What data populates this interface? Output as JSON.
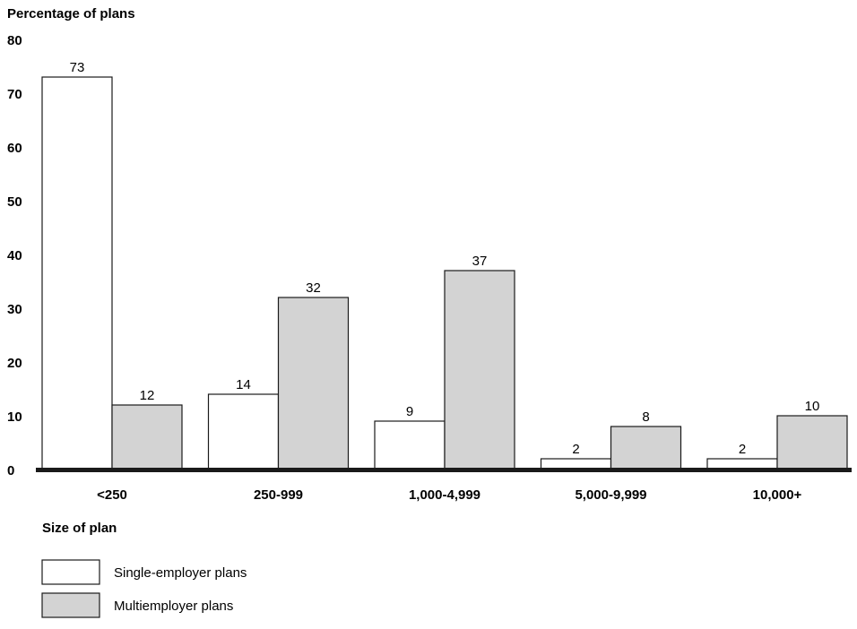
{
  "chart_data": {
    "type": "bar",
    "title": "",
    "ylabel": "Percentage of plans",
    "xlabel": "Size of plan",
    "ylim": [
      0,
      80
    ],
    "yticks": [
      0,
      10,
      20,
      30,
      40,
      50,
      60,
      70,
      80
    ],
    "grid": false,
    "legend_position": "bottom-left",
    "categories": [
      "<250",
      "250-999",
      "1,000-4,999",
      "5,000-9,999",
      "10,000+"
    ],
    "series": [
      {
        "name": "Single-employer plans",
        "color": "#ffffff",
        "values": [
          73,
          14,
          9,
          2,
          2
        ]
      },
      {
        "name": "Multiemployer plans",
        "color": "#d3d3d3",
        "values": [
          12,
          32,
          37,
          8,
          10
        ]
      }
    ]
  }
}
